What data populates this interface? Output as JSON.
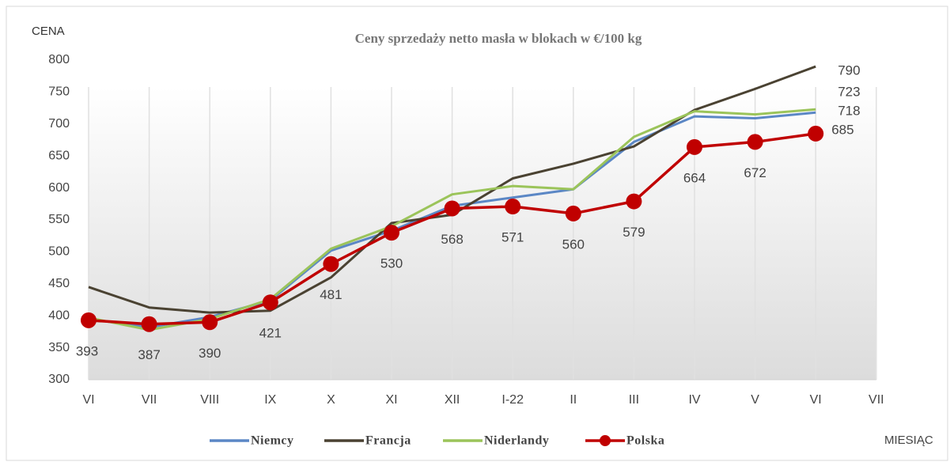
{
  "chart_data": {
    "type": "line",
    "title": "Ceny sprzedaży  netto masła w blokach  w €/100 kg",
    "y_axis_label": "CENA",
    "x_axis_label": "MIESIĄC",
    "categories": [
      "VI",
      "VII",
      "VIII",
      "IX",
      "X",
      "XI",
      "XII",
      "I-22",
      "II",
      "III",
      "IV",
      "V",
      "VI",
      "VII"
    ],
    "series": [
      {
        "name": "Niemcy",
        "color": "#5b87c5",
        "values": [
          395,
          382,
          398,
          424,
          502,
          533,
          572,
          585,
          598,
          672,
          712,
          709,
          718,
          null
        ]
      },
      {
        "name": "Francja",
        "color": "#4a4232",
        "values": [
          445,
          413,
          405,
          408,
          460,
          545,
          558,
          615,
          638,
          665,
          722,
          755,
          790,
          null
        ]
      },
      {
        "name": "Niderlandy",
        "color": "#9bc45a",
        "values": [
          397,
          378,
          395,
          426,
          505,
          540,
          590,
          603,
          598,
          680,
          720,
          715,
          723,
          null
        ]
      },
      {
        "name": "Polska",
        "color": "#c00000",
        "values": [
          393,
          387,
          390,
          421,
          481,
          530,
          568,
          571,
          560,
          579,
          664,
          672,
          685,
          null
        ]
      }
    ],
    "ylim": [
      300,
      800
    ],
    "yticks": [
      300,
      350,
      400,
      450,
      500,
      550,
      600,
      650,
      700,
      750,
      800
    ],
    "grid": true,
    "legend": "bottom"
  }
}
